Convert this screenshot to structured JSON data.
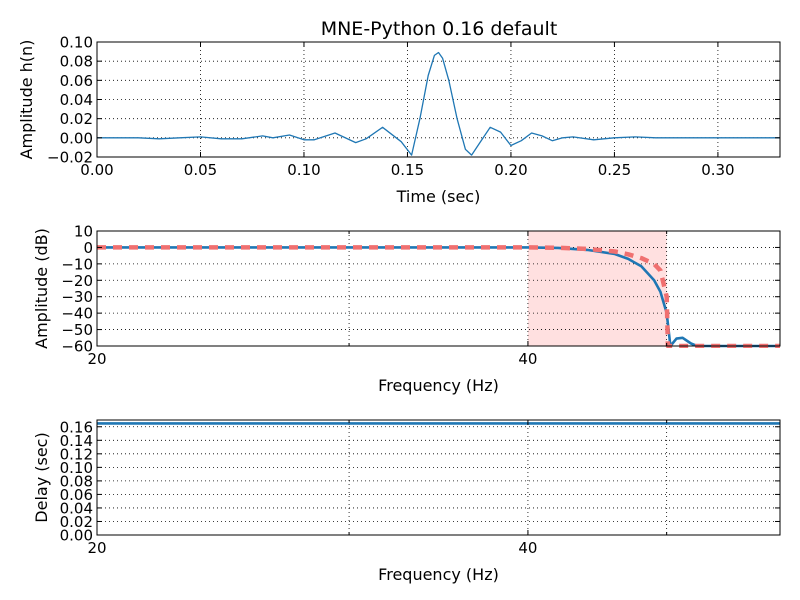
{
  "colors": {
    "primary": "#1f77b4",
    "ideal": "#f07070",
    "band": "#ffe0e0",
    "grid": "#000000"
  },
  "chart_data": [
    {
      "type": "line",
      "title": "MNE-Python 0.16 default",
      "xlabel": "Time (sec)",
      "ylabel": "Amplitude h(n)",
      "xlim": [
        0,
        0.33
      ],
      "ylim": [
        -0.02,
        0.1
      ],
      "xticks": [
        0,
        0.05,
        0.1,
        0.15,
        0.2,
        0.25,
        0.3
      ],
      "xtick_labels": [
        "0.00",
        "0.05",
        "0.10",
        "0.15",
        "0.20",
        "0.25",
        "0.30"
      ],
      "yticks": [
        -0.02,
        0,
        0.02,
        0.04,
        0.06,
        0.08,
        0.1
      ],
      "ytick_labels": [
        "−0.02",
        "0.00",
        "0.02",
        "0.04",
        "0.06",
        "0.08",
        "0.10"
      ],
      "grid": true,
      "series": [
        {
          "color": "#1f77b4",
          "x": [
            0.0,
            0.01,
            0.02,
            0.03,
            0.04,
            0.05,
            0.06,
            0.07,
            0.08,
            0.085,
            0.093,
            0.1,
            0.105,
            0.115,
            0.125,
            0.13,
            0.138,
            0.147,
            0.152,
            0.156,
            0.16,
            0.163,
            0.165,
            0.167,
            0.17,
            0.174,
            0.178,
            0.181,
            0.185,
            0.19,
            0.195,
            0.2,
            0.205,
            0.21,
            0.215,
            0.22,
            0.225,
            0.23,
            0.24,
            0.25,
            0.26,
            0.27,
            0.28,
            0.29,
            0.3,
            0.31,
            0.32,
            0.33
          ],
          "y": [
            0.0,
            0.0,
            0.0,
            -0.001,
            0.0,
            0.001,
            -0.001,
            -0.001,
            0.002,
            0.0,
            0.003,
            -0.002,
            -0.002,
            0.005,
            -0.005,
            -0.001,
            0.011,
            -0.004,
            -0.018,
            0.02,
            0.065,
            0.086,
            0.089,
            0.083,
            0.06,
            0.02,
            -0.012,
            -0.018,
            -0.005,
            0.011,
            0.006,
            -0.008,
            -0.003,
            0.005,
            0.002,
            -0.003,
            0.0,
            0.001,
            -0.002,
            0.0,
            0.001,
            0.0,
            0.0,
            0.0,
            0.0,
            0.0,
            0.0,
            0.0
          ]
        }
      ]
    },
    {
      "type": "line",
      "xlabel": "Frequency (Hz)",
      "ylabel": "Amplitude (dB)",
      "xscale": "log",
      "xlim": [
        20,
        60
      ],
      "ylim": [
        -60,
        10
      ],
      "xticks": [
        20,
        40
      ],
      "xtick_labels": [
        "20",
        "40"
      ],
      "minor_xticks": [
        30,
        50
      ],
      "yticks": [
        10,
        0,
        -10,
        -20,
        -30,
        -40,
        -50,
        -60
      ],
      "ytick_labels": [
        "10",
        "0",
        "−10",
        "−20",
        "−30",
        "−40",
        "−50",
        "−60"
      ],
      "grid": true,
      "shaded_band": {
        "x": [
          40,
          50
        ],
        "y": [
          -60,
          10
        ]
      },
      "series": [
        {
          "style": "solid",
          "color": "#1f77b4",
          "x": [
            20,
            30,
            38,
            40,
            42,
            44,
            46,
            47,
            48,
            49,
            49.5,
            50,
            50.3,
            50.8,
            51.3,
            52,
            52.5,
            53,
            55,
            56,
            58,
            60
          ],
          "y": [
            0,
            0,
            0,
            0,
            -0.3,
            -1.5,
            -4,
            -7,
            -11.5,
            -20,
            -27,
            -40,
            -60,
            -55.5,
            -55,
            -58.5,
            -60,
            -60,
            -60,
            -60,
            -60,
            -60
          ]
        },
        {
          "style": "dashed",
          "color": "#f07070",
          "x": [
            20,
            40,
            42,
            44,
            46,
            47,
            48,
            49,
            49.5,
            50,
            50.1,
            60
          ],
          "y": [
            0,
            0,
            -0.2,
            -0.9,
            -2.5,
            -4.2,
            -6.5,
            -10,
            -14,
            -30,
            -60,
            -60
          ]
        }
      ]
    },
    {
      "type": "line",
      "xlabel": "Frequency (Hz)",
      "ylabel": "Delay (sec)",
      "xscale": "log",
      "xlim": [
        20,
        60
      ],
      "ylim": [
        0,
        0.17
      ],
      "xticks": [
        20,
        40
      ],
      "xtick_labels": [
        "20",
        "40"
      ],
      "minor_xticks": [
        30,
        50
      ],
      "yticks": [
        0,
        0.02,
        0.04,
        0.06,
        0.08,
        0.1,
        0.12,
        0.14,
        0.16
      ],
      "ytick_labels": [
        "0.00",
        "0.02",
        "0.04",
        "0.06",
        "0.08",
        "0.10",
        "0.12",
        "0.14",
        "0.16"
      ],
      "grid": true,
      "series": [
        {
          "color": "#1f77b4",
          "x": [
            20,
            60
          ],
          "y": [
            0.165,
            0.165
          ]
        }
      ]
    }
  ]
}
